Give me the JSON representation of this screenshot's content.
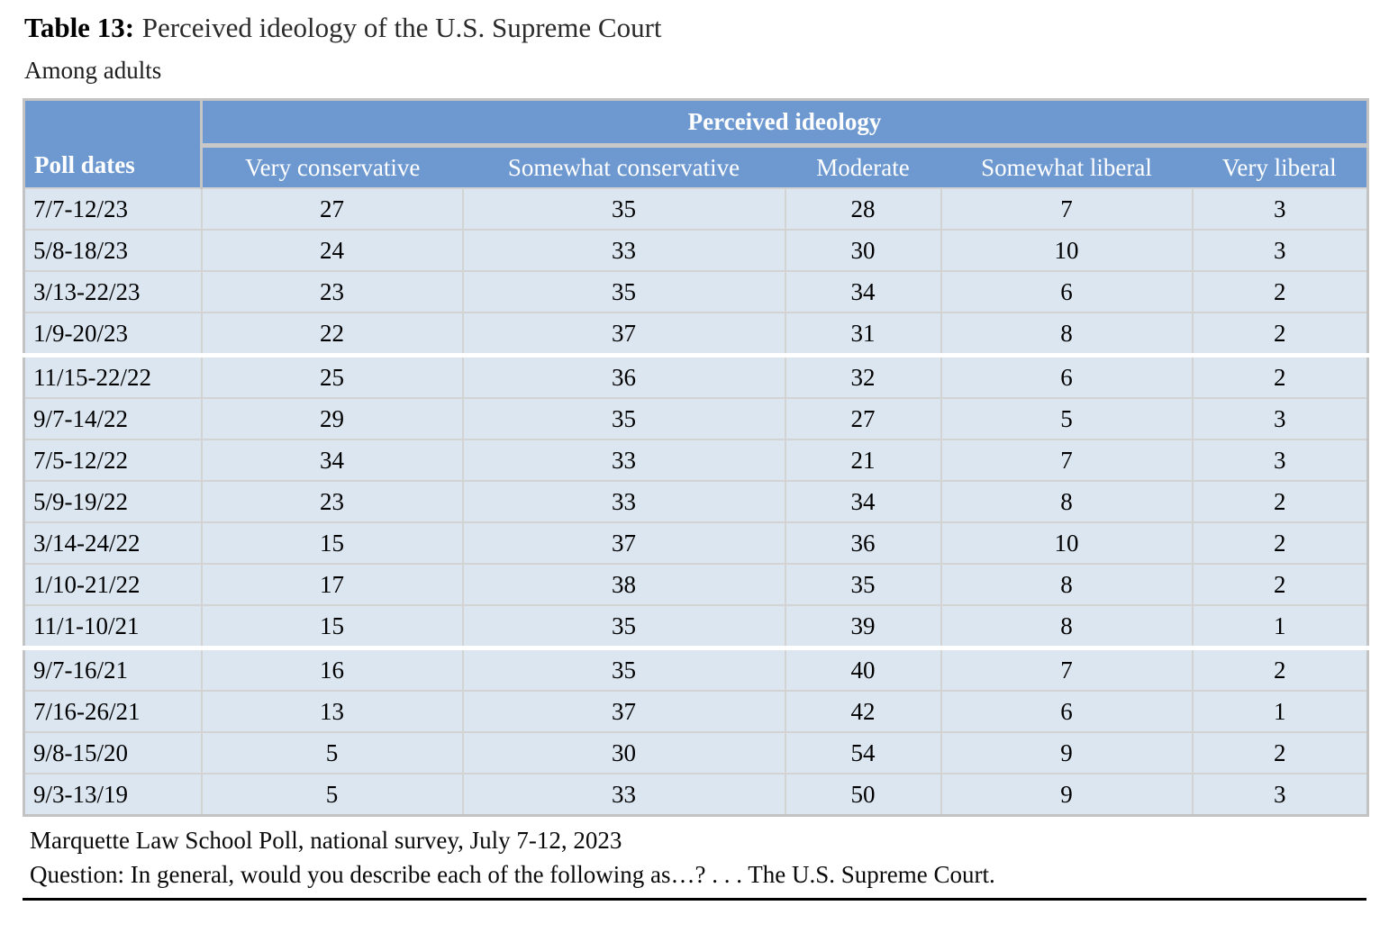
{
  "title": {
    "prefix": "Table 13:",
    "rest": "Perceived ideology of the U.S. Supreme Court"
  },
  "subtitle": "Among adults",
  "table": {
    "corner_header": "Poll dates",
    "group_header": "Perceived ideology",
    "columns": [
      "Very conservative",
      "Somewhat conservative",
      "Moderate",
      "Somewhat liberal",
      "Very liberal"
    ],
    "rows": [
      {
        "date": "7/7-12/23",
        "values": [
          27,
          35,
          28,
          7,
          3
        ],
        "group_start": false
      },
      {
        "date": "5/8-18/23",
        "values": [
          24,
          33,
          30,
          10,
          3
        ],
        "group_start": false
      },
      {
        "date": "3/13-22/23",
        "values": [
          23,
          35,
          34,
          6,
          2
        ],
        "group_start": false
      },
      {
        "date": "1/9-20/23",
        "values": [
          22,
          37,
          31,
          8,
          2
        ],
        "group_start": false
      },
      {
        "date": "11/15-22/22",
        "values": [
          25,
          36,
          32,
          6,
          2
        ],
        "group_start": true
      },
      {
        "date": "9/7-14/22",
        "values": [
          29,
          35,
          27,
          5,
          3
        ],
        "group_start": false
      },
      {
        "date": "7/5-12/22",
        "values": [
          34,
          33,
          21,
          7,
          3
        ],
        "group_start": false
      },
      {
        "date": "5/9-19/22",
        "values": [
          23,
          33,
          34,
          8,
          2
        ],
        "group_start": false
      },
      {
        "date": "3/14-24/22",
        "values": [
          15,
          37,
          36,
          10,
          2
        ],
        "group_start": false
      },
      {
        "date": "1/10-21/22",
        "values": [
          17,
          38,
          35,
          8,
          2
        ],
        "group_start": false
      },
      {
        "date": "11/1-10/21",
        "values": [
          15,
          35,
          39,
          8,
          1
        ],
        "group_start": false
      },
      {
        "date": "9/7-16/21",
        "values": [
          16,
          35,
          40,
          7,
          2
        ],
        "group_start": true
      },
      {
        "date": "7/16-26/21",
        "values": [
          13,
          37,
          42,
          6,
          1
        ],
        "group_start": false
      },
      {
        "date": "9/8-15/20",
        "values": [
          5,
          30,
          54,
          9,
          2
        ],
        "group_start": false
      },
      {
        "date": "9/3-13/19",
        "values": [
          5,
          33,
          50,
          9,
          3
        ],
        "group_start": false
      }
    ]
  },
  "footer": {
    "source": "Marquette Law School Poll, national survey, July 7-12, 2023",
    "question": "Question: In general, would you describe each of the following as…? . . . The U.S. Supreme Court."
  },
  "colors": {
    "header_blue": "#6e99d0",
    "row_blue": "#dce6f1",
    "grid_gray": "#d3d3d3",
    "border_gray": "#c3c3c3",
    "rule_black": "#000000",
    "header_text": "#ffffff"
  }
}
